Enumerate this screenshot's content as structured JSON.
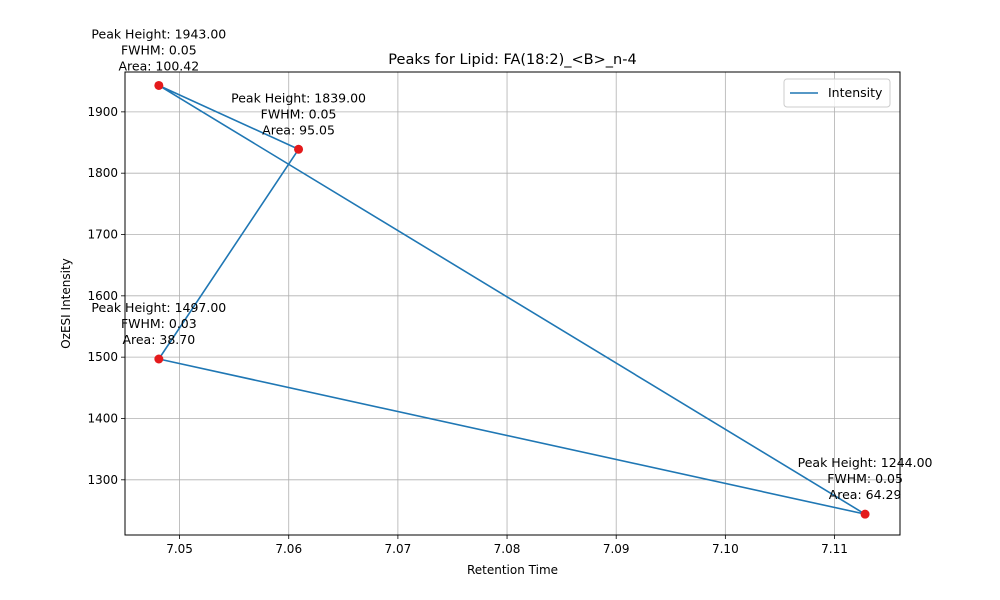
{
  "chart_data": {
    "type": "line",
    "title": "Peaks for Lipid: FA(18:2)_<B>_n-4",
    "xlabel": "Retention Time",
    "ylabel": "OzESI Intensity",
    "xlim": [
      7.045,
      7.116
    ],
    "ylim": [
      1210,
      1965
    ],
    "xticks": [
      7.05,
      7.06,
      7.07,
      7.08,
      7.09,
      7.1,
      7.11
    ],
    "xtick_labels": [
      "7.05",
      "7.06",
      "7.07",
      "7.08",
      "7.09",
      "7.10",
      "7.11"
    ],
    "yticks": [
      1300,
      1400,
      1500,
      1600,
      1700,
      1800,
      1900
    ],
    "ytick_labels": [
      "1300",
      "1400",
      "1500",
      "1600",
      "1700",
      "1800",
      "1900"
    ],
    "grid": true,
    "legend_position": "top-right",
    "series": [
      {
        "name": "Intensity",
        "color": "#1f77b4",
        "x": [
          7.0481,
          7.0609,
          7.0481,
          7.1128,
          7.0481
        ],
        "y": [
          1943,
          1839,
          1497,
          1244,
          1943
        ]
      }
    ],
    "peaks": {
      "color": "#e41a1c",
      "points": [
        {
          "x": 7.0481,
          "y": 1943,
          "lines": [
            "Peak Height: 1943.00",
            "FWHM: 0.05",
            "Area: 100.42"
          ]
        },
        {
          "x": 7.0609,
          "y": 1839,
          "lines": [
            "Peak Height: 1839.00",
            "FWHM: 0.05",
            "Area: 95.05"
          ]
        },
        {
          "x": 7.0481,
          "y": 1497,
          "lines": [
            "Peak Height: 1497.00",
            "FWHM: 0.03",
            "Area: 38.70"
          ]
        },
        {
          "x": 7.1128,
          "y": 1244,
          "lines": [
            "Peak Height: 1244.00",
            "FWHM: 0.05",
            "Area: 64.29"
          ]
        }
      ]
    }
  }
}
